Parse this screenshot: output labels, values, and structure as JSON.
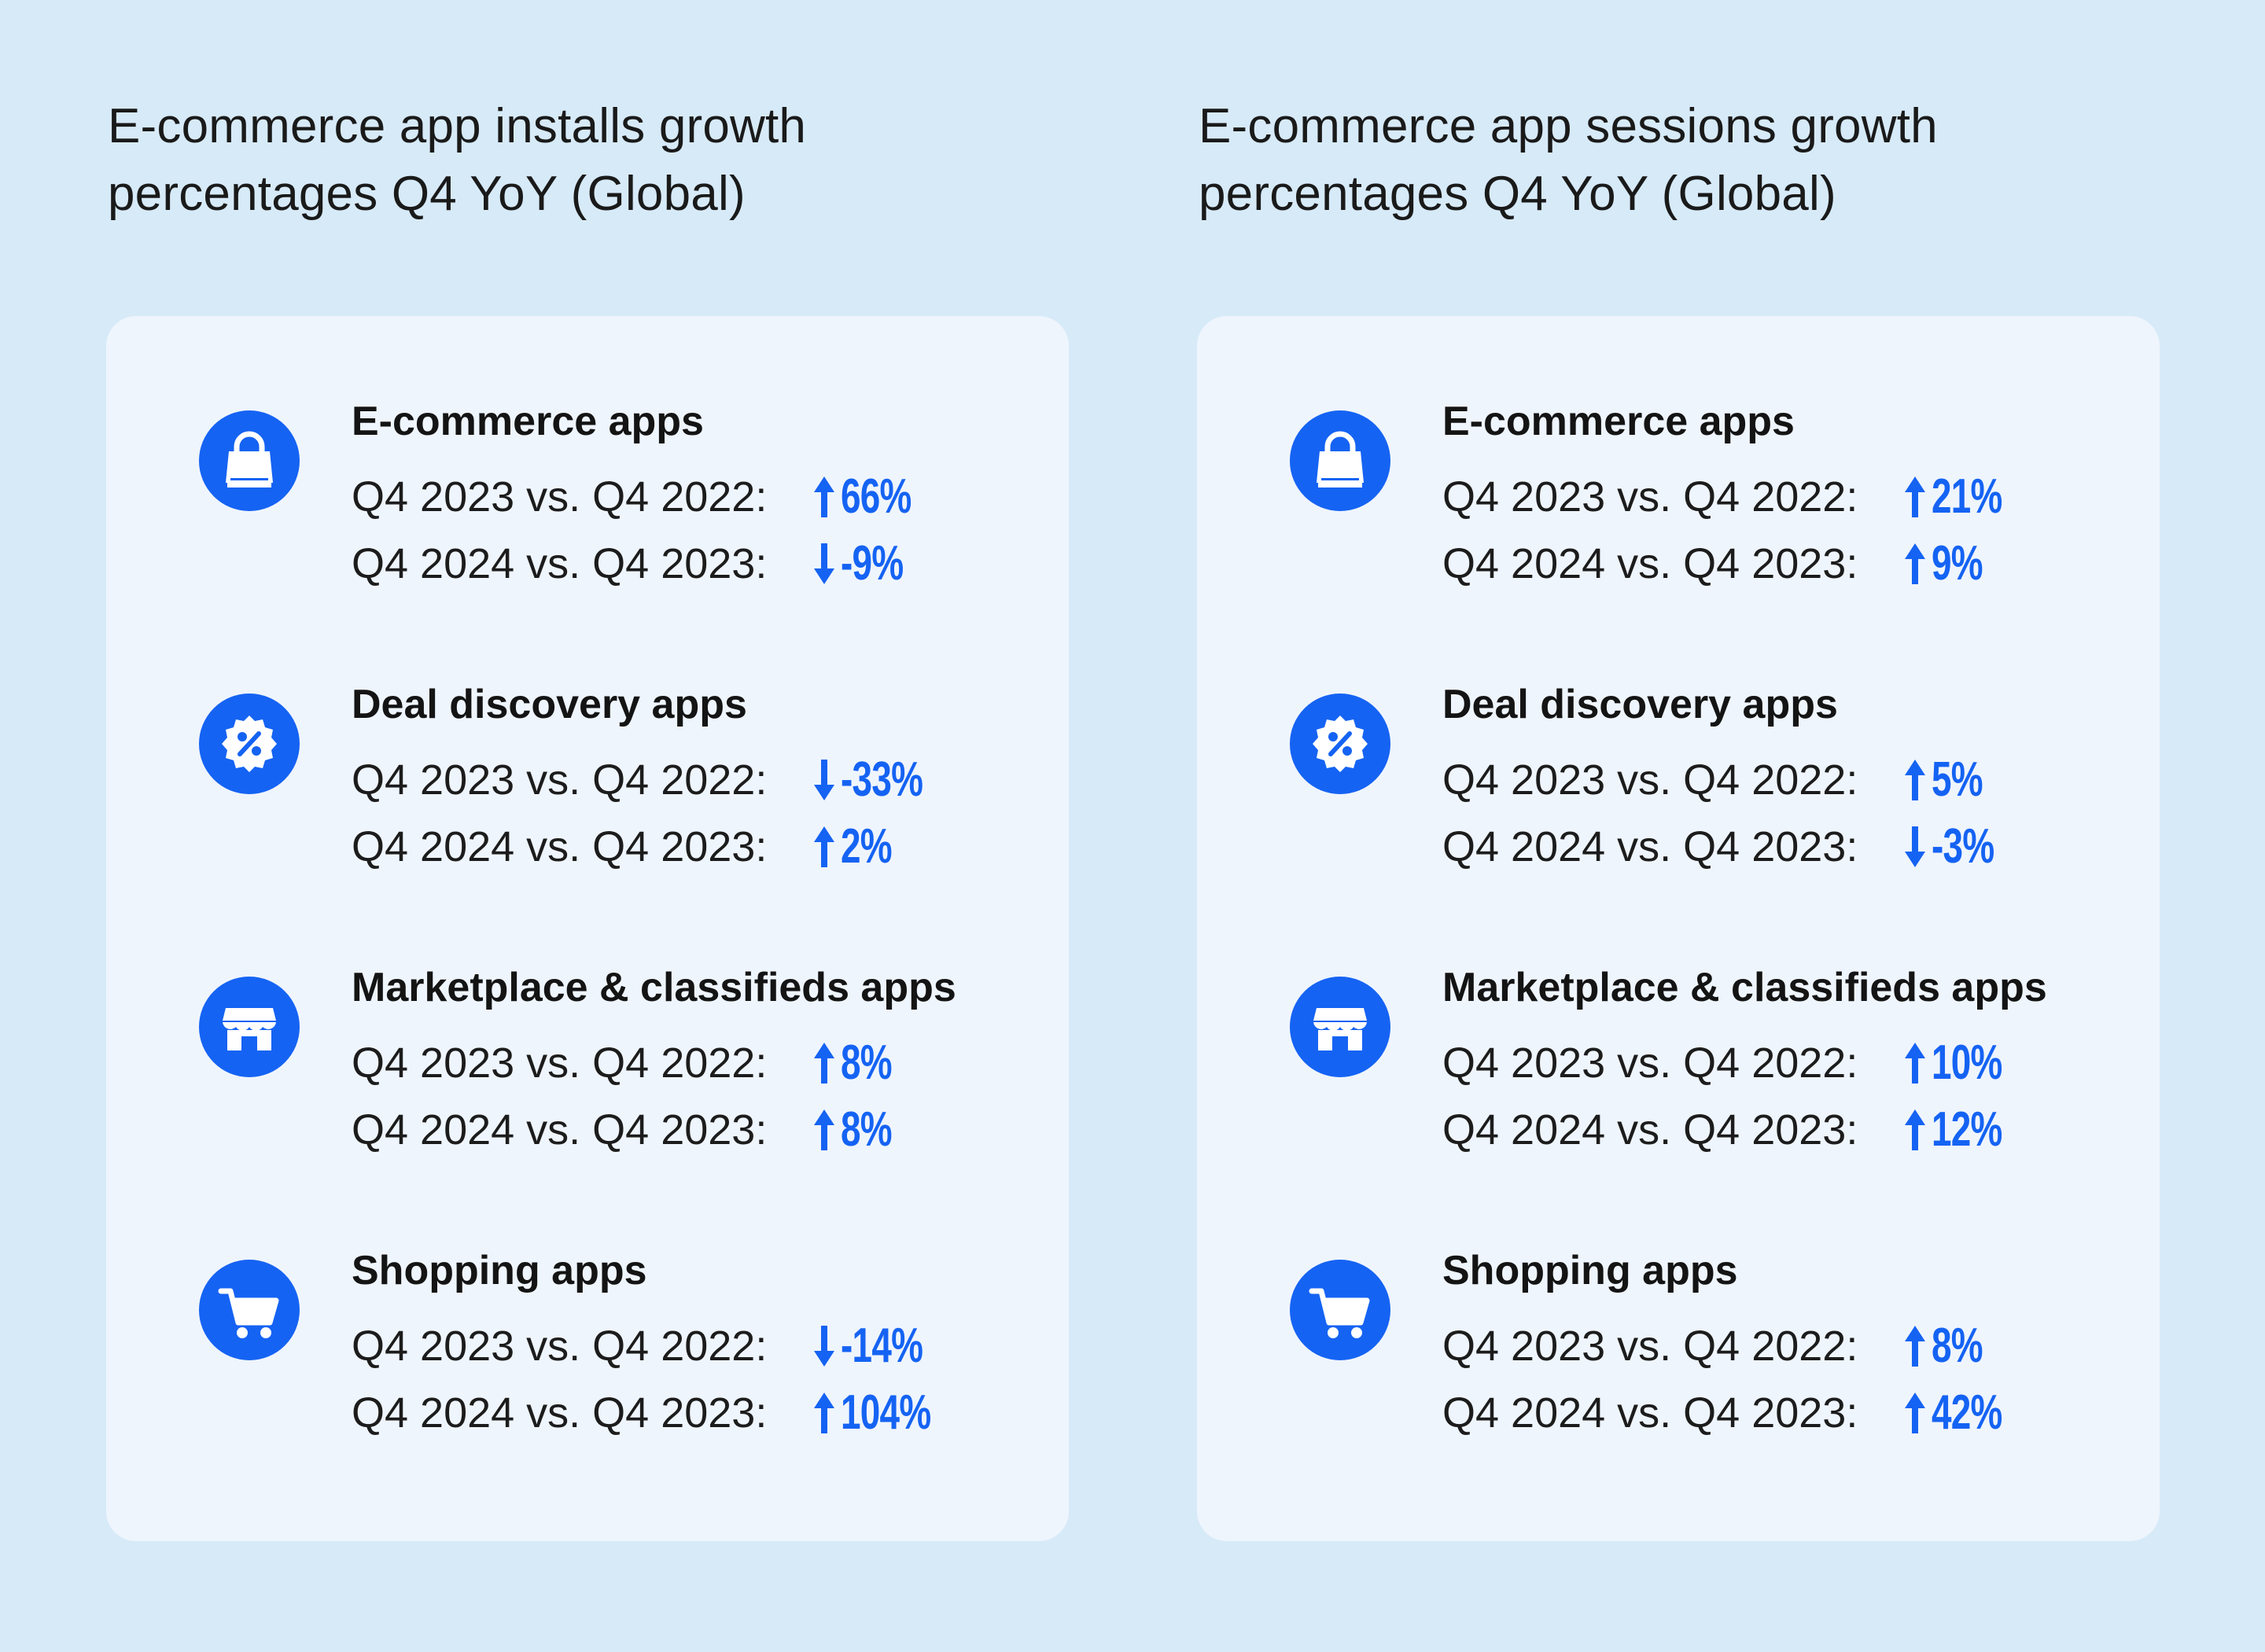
{
  "colors": {
    "background": "#d7eaf8",
    "card": "#eff5fd",
    "accent": "#1563f3"
  },
  "chart_data": [
    {
      "type": "table",
      "title": "E-commerce app installs growth percentages Q4 YoY (Global)",
      "columns": [
        "Q4 2023 vs. Q4 2022:",
        "Q4 2024 vs. Q4 2023:"
      ],
      "categories": [
        {
          "name": "E-commerce apps",
          "icon": "shopping-bag-icon",
          "rows": [
            {
              "label": "Q4 2023 vs. Q4 2022:",
              "value": 66,
              "display": "66%",
              "direction": "up"
            },
            {
              "label": "Q4 2024 vs. Q4 2023:",
              "value": -9,
              "display": "-9%",
              "direction": "down"
            }
          ]
        },
        {
          "name": "Deal discovery apps",
          "icon": "discount-badge-icon",
          "rows": [
            {
              "label": "Q4 2023 vs. Q4 2022:",
              "value": -33,
              "display": "-33%",
              "direction": "down"
            },
            {
              "label": "Q4 2024 vs. Q4 2023:",
              "value": 2,
              "display": "2%",
              "direction": "up"
            }
          ]
        },
        {
          "name": "Marketplace & classifieds apps",
          "icon": "storefront-icon",
          "rows": [
            {
              "label": "Q4 2023 vs. Q4 2022:",
              "value": 8,
              "display": "8%",
              "direction": "up"
            },
            {
              "label": "Q4 2024 vs. Q4 2023:",
              "value": 8,
              "display": "8%",
              "direction": "up"
            }
          ]
        },
        {
          "name": "Shopping apps",
          "icon": "shopping-cart-icon",
          "rows": [
            {
              "label": "Q4 2023 vs. Q4 2022:",
              "value": -14,
              "display": "-14%",
              "direction": "down"
            },
            {
              "label": "Q4 2024 vs. Q4 2023:",
              "value": 104,
              "display": "104%",
              "direction": "up"
            }
          ]
        }
      ]
    },
    {
      "type": "table",
      "title": "E-commerce app sessions growth percentages Q4 YoY (Global)",
      "columns": [
        "Q4 2023 vs. Q4 2022:",
        "Q4 2024 vs. Q4 2023:"
      ],
      "categories": [
        {
          "name": "E-commerce apps",
          "icon": "shopping-bag-icon",
          "rows": [
            {
              "label": "Q4 2023 vs. Q4 2022:",
              "value": 21,
              "display": "21%",
              "direction": "up"
            },
            {
              "label": "Q4 2024 vs. Q4 2023:",
              "value": 9,
              "display": "9%",
              "direction": "up"
            }
          ]
        },
        {
          "name": "Deal discovery apps",
          "icon": "discount-badge-icon",
          "rows": [
            {
              "label": "Q4 2023 vs. Q4 2022:",
              "value": 5,
              "display": "5%",
              "direction": "up"
            },
            {
              "label": "Q4 2024 vs. Q4 2023:",
              "value": -3,
              "display": "-3%",
              "direction": "down"
            }
          ]
        },
        {
          "name": "Marketplace & classifieds apps",
          "icon": "storefront-icon",
          "rows": [
            {
              "label": "Q4 2023 vs. Q4 2022:",
              "value": 10,
              "display": "10%",
              "direction": "up"
            },
            {
              "label": "Q4 2024 vs. Q4 2023:",
              "value": 12,
              "display": "12%",
              "direction": "up"
            }
          ]
        },
        {
          "name": "Shopping apps",
          "icon": "shopping-cart-icon",
          "rows": [
            {
              "label": "Q4 2023 vs. Q4 2022:",
              "value": 8,
              "display": "8%",
              "direction": "up"
            },
            {
              "label": "Q4 2024 vs. Q4 2023:",
              "value": 42,
              "display": "42%",
              "direction": "up"
            }
          ]
        }
      ]
    }
  ]
}
